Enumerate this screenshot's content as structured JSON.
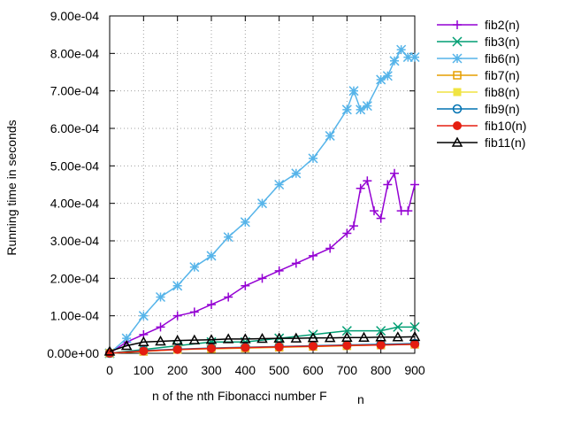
{
  "chart_data": {
    "type": "line",
    "xlabel": "n of the nth Fibonacci number F",
    "xlabel_subscript": "n",
    "ylabel": "Running time in seconds",
    "xlim": [
      0,
      900
    ],
    "ylim": [
      0,
      0.0009
    ],
    "xticks": [
      0,
      100,
      200,
      300,
      400,
      500,
      600,
      700,
      800,
      900
    ],
    "xtick_labels": [
      "0",
      "100",
      "200",
      "300",
      "400",
      "500",
      "600",
      "700",
      "800",
      "900"
    ],
    "yticks": [
      0,
      0.0001,
      0.0002,
      0.0003,
      0.0004,
      0.0005,
      0.0006,
      0.0007,
      0.0008,
      0.0009
    ],
    "ytick_labels": [
      "0.00e+00",
      "1.00e-04",
      "2.00e-04",
      "3.00e-04",
      "4.00e-04",
      "5.00e-04",
      "6.00e-04",
      "7.00e-04",
      "8.00e-04",
      "9.00e-04"
    ],
    "grid": true,
    "legend_position": "outside-right-top",
    "series": [
      {
        "name": "fib2(n)",
        "color": "#9400d3",
        "marker": "plus",
        "x": [
          0,
          50,
          100,
          150,
          200,
          250,
          300,
          350,
          400,
          450,
          500,
          550,
          600,
          650,
          700,
          720,
          740,
          760,
          780,
          800,
          820,
          840,
          860,
          880,
          900
        ],
        "y": [
          0.0,
          3e-05,
          5e-05,
          7e-05,
          0.0001,
          0.00011,
          0.00013,
          0.00015,
          0.00018,
          0.0002,
          0.00022,
          0.00024,
          0.00026,
          0.00028,
          0.00032,
          0.00034,
          0.00044,
          0.00046,
          0.00038,
          0.00036,
          0.00045,
          0.00048,
          0.00038,
          0.00038,
          0.00045
        ]
      },
      {
        "name": "fib3(n)",
        "color": "#009e73",
        "marker": "cross",
        "x": [
          0,
          100,
          200,
          300,
          400,
          500,
          600,
          700,
          800,
          850,
          900
        ],
        "y": [
          0.0,
          1e-05,
          2e-05,
          3e-05,
          3e-05,
          4e-05,
          5e-05,
          6e-05,
          6e-05,
          7e-05,
          7e-05
        ]
      },
      {
        "name": "fib6(n)",
        "color": "#56b4e9",
        "marker": "star",
        "x": [
          0,
          50,
          100,
          150,
          200,
          250,
          300,
          350,
          400,
          450,
          500,
          550,
          600,
          650,
          700,
          720,
          740,
          760,
          800,
          820,
          840,
          860,
          880,
          900
        ],
        "y": [
          0.0,
          4e-05,
          0.0001,
          0.00015,
          0.00018,
          0.00023,
          0.00026,
          0.00031,
          0.00035,
          0.0004,
          0.00045,
          0.00048,
          0.00052,
          0.00058,
          0.00065,
          0.0007,
          0.00065,
          0.00066,
          0.00073,
          0.00074,
          0.00078,
          0.00081,
          0.00079,
          0.00079
        ]
      },
      {
        "name": "fib7(n)",
        "color": "#e69f00",
        "marker": "square",
        "x": [
          0,
          100,
          200,
          300,
          400,
          500,
          600,
          700,
          800,
          900
        ],
        "y": [
          0.0,
          5e-06,
          1e-05,
          1.2e-05,
          1.4e-05,
          1.6e-05,
          1.8e-05,
          2e-05,
          2.2e-05,
          2.4e-05
        ]
      },
      {
        "name": "fib8(n)",
        "color": "#f0e442",
        "marker": "square-filled",
        "x": [
          0,
          100,
          200,
          300,
          400,
          500,
          600,
          700,
          800,
          900
        ],
        "y": [
          0.0,
          6e-06,
          1e-05,
          1.3e-05,
          1.5e-05,
          1.7e-05,
          1.9e-05,
          2.1e-05,
          2.3e-05,
          2.5e-05
        ]
      },
      {
        "name": "fib9(n)",
        "color": "#0072b2",
        "marker": "circle",
        "x": [
          0,
          100,
          200,
          300,
          400,
          500,
          600,
          700,
          800,
          900
        ],
        "y": [
          0.0,
          7e-06,
          1.1e-05,
          1.4e-05,
          1.6e-05,
          1.8e-05,
          2e-05,
          2.2e-05,
          2.4e-05,
          2.6e-05
        ]
      },
      {
        "name": "fib10(n)",
        "color": "#e51e10",
        "marker": "circle-filled",
        "x": [
          0,
          100,
          200,
          300,
          400,
          500,
          600,
          700,
          800,
          900
        ],
        "y": [
          0.0,
          6e-06,
          1e-05,
          1.3e-05,
          1.5e-05,
          1.7e-05,
          1.9e-05,
          2.1e-05,
          2.2e-05,
          2.4e-05
        ]
      },
      {
        "name": "fib11(n)",
        "color": "#000000",
        "marker": "triangle",
        "x": [
          0,
          50,
          100,
          150,
          200,
          250,
          300,
          350,
          400,
          450,
          500,
          550,
          600,
          650,
          700,
          750,
          800,
          850,
          900
        ],
        "y": [
          5e-06,
          2e-05,
          3e-05,
          3.2e-05,
          3.4e-05,
          3.5e-05,
          3.6e-05,
          3.8e-05,
          3.8e-05,
          3.9e-05,
          4e-05,
          4e-05,
          4.1e-05,
          4.1e-05,
          4.2e-05,
          4.2e-05,
          4.3e-05,
          4.3e-05,
          4.4e-05
        ]
      }
    ]
  }
}
